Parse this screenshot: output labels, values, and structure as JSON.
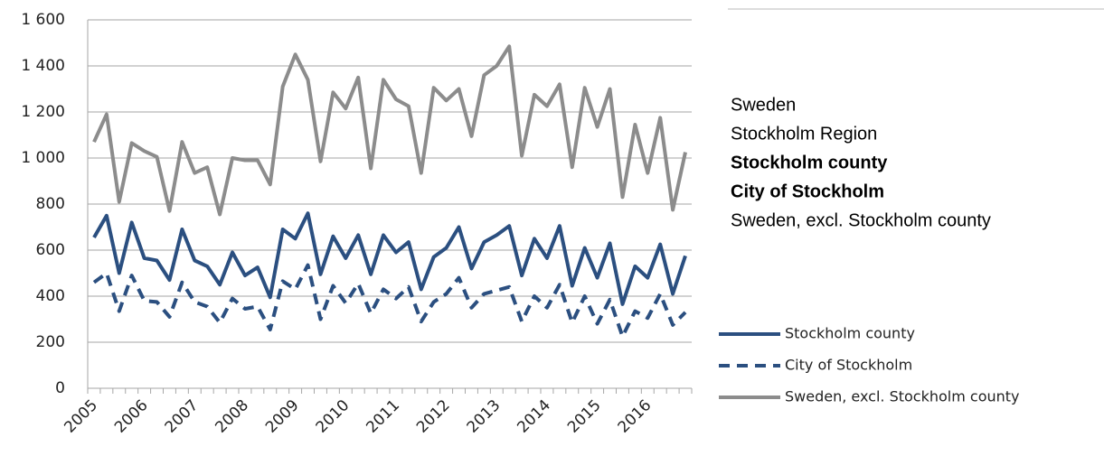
{
  "chart_data": {
    "type": "line",
    "categories": [
      "2005",
      null,
      null,
      null,
      "2006",
      null,
      null,
      null,
      "2007",
      null,
      null,
      null,
      "2008",
      null,
      null,
      null,
      "2009",
      null,
      null,
      null,
      "2010",
      null,
      null,
      null,
      "2011",
      null,
      null,
      null,
      "2012",
      null,
      null,
      null,
      "2013",
      null,
      null,
      null,
      "2014",
      null,
      null,
      null,
      "2015",
      null,
      null,
      null,
      "2016",
      null,
      null,
      null
    ],
    "series": [
      {
        "name": "Stockholm county",
        "color": "#2b4f80",
        "style": "solid",
        "values": [
          655,
          750,
          500,
          720,
          565,
          555,
          470,
          690,
          555,
          530,
          450,
          590,
          490,
          525,
          395,
          690,
          650,
          760,
          495,
          660,
          565,
          665,
          495,
          665,
          590,
          635,
          430,
          570,
          610,
          700,
          520,
          635,
          665,
          705,
          490,
          650,
          565,
          705,
          445,
          610,
          480,
          630,
          365,
          530,
          480,
          625,
          410,
          575
        ]
      },
      {
        "name": "City of Stockholm",
        "color": "#2b4f80",
        "style": "dashed",
        "values": [
          460,
          500,
          335,
          490,
          380,
          375,
          310,
          460,
          375,
          355,
          285,
          390,
          345,
          355,
          255,
          465,
          430,
          535,
          300,
          445,
          370,
          455,
          325,
          430,
          390,
          440,
          290,
          375,
          410,
          480,
          350,
          410,
          425,
          440,
          290,
          400,
          350,
          450,
          285,
          400,
          280,
          385,
          225,
          335,
          305,
          410,
          275,
          330
        ]
      },
      {
        "name": "Sweden, excl. Stockholm county",
        "color": "#8c8c8c",
        "style": "solid",
        "values": [
          1070,
          1190,
          810,
          1065,
          1030,
          1005,
          770,
          1070,
          935,
          960,
          755,
          1000,
          990,
          990,
          885,
          1310,
          1450,
          1340,
          985,
          1285,
          1215,
          1350,
          955,
          1340,
          1255,
          1225,
          935,
          1305,
          1250,
          1300,
          1095,
          1360,
          1400,
          1485,
          1010,
          1275,
          1225,
          1320,
          960,
          1305,
          1135,
          1300,
          830,
          1145,
          935,
          1175,
          775,
          1025
        ]
      }
    ],
    "ylim": [
      0,
      1600
    ],
    "yticks": [
      0,
      200,
      400,
      600,
      800,
      {
        "value": 1000,
        "label": "1 000"
      },
      {
        "value": 1200,
        "label": "1 200"
      },
      {
        "value": 1400,
        "label": "1 400"
      },
      {
        "value": 1600,
        "label": "1 600"
      }
    ],
    "grid": true,
    "legend": "bottom-right"
  },
  "side_panel": {
    "items": [
      {
        "text": "Sweden",
        "bold": false
      },
      {
        "text": "Stockholm Region",
        "bold": false
      },
      {
        "text": "Stockholm county",
        "bold": true
      },
      {
        "text": "City of Stockholm",
        "bold": true
      },
      {
        "text": "Sweden, excl. Stockholm county",
        "bold": false
      }
    ]
  }
}
